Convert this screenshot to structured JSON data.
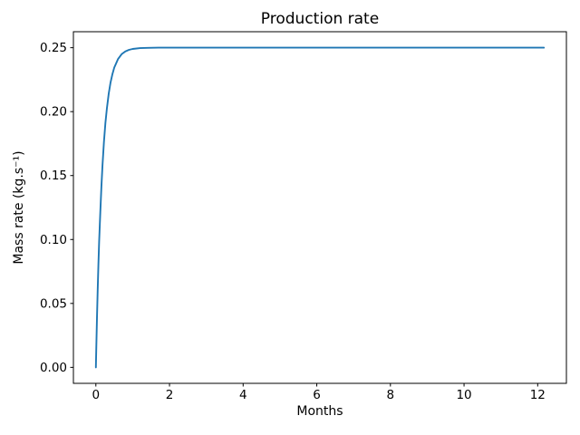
{
  "chart_data": {
    "type": "line",
    "title": "Production rate",
    "xlabel": "Months",
    "ylabel": "Mass rate (kg.s⁻¹)",
    "xlim": [
      -0.61,
      12.78
    ],
    "ylim": [
      -0.0125,
      0.2625
    ],
    "x_ticks": [
      0,
      2,
      4,
      6,
      8,
      10,
      12
    ],
    "x_tick_labels": [
      "0",
      "2",
      "4",
      "6",
      "8",
      "10",
      "12"
    ],
    "y_ticks": [
      0.0,
      0.05,
      0.1,
      0.15,
      0.2,
      0.25
    ],
    "y_tick_labels": [
      "0.00",
      "0.05",
      "0.10",
      "0.15",
      "0.20",
      "0.25"
    ],
    "grid": false,
    "legend": "none",
    "background_color": "#ffffff",
    "axes_edge_color": "#000000",
    "line_color": "#1f77b4",
    "saturation_value": 0.25,
    "series": [
      {
        "name": "Mass rate",
        "x": [
          0,
          0.01,
          0.03,
          0.05,
          0.07,
          0.09,
          0.12,
          0.15,
          0.18,
          0.22,
          0.26,
          0.3,
          0.35,
          0.4,
          0.45,
          0.5,
          0.6,
          0.7,
          0.8,
          0.9,
          1.0,
          1.2,
          1.4,
          1.7,
          2.0,
          2.5,
          3.0,
          4.0,
          5.0,
          6.0,
          7.0,
          8.0,
          9.0,
          10.0,
          11.0,
          12.0,
          12.17
        ],
        "y": [
          0.0,
          0.0135,
          0.0384,
          0.0606,
          0.0806,
          0.0984,
          0.1216,
          0.1414,
          0.158,
          0.1764,
          0.191,
          0.2028,
          0.2142,
          0.2229,
          0.2295,
          0.2345,
          0.2411,
          0.2449,
          0.2471,
          0.2483,
          0.249,
          0.2497,
          0.2499,
          0.25,
          0.25,
          0.25,
          0.25,
          0.25,
          0.25,
          0.25,
          0.25,
          0.25,
          0.25,
          0.25,
          0.25,
          0.25,
          0.25
        ]
      }
    ]
  }
}
